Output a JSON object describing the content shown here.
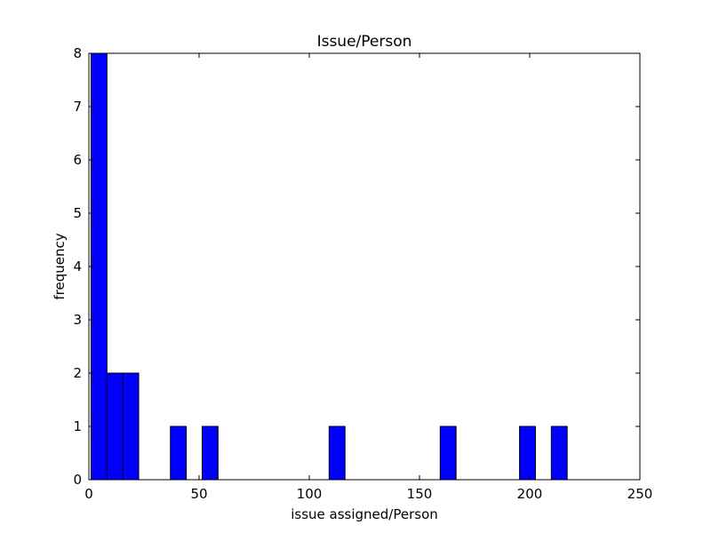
{
  "chart_data": {
    "type": "bar",
    "title": "Issue/Person",
    "xlabel": "issue assigned/Person",
    "ylabel": "frequency",
    "xlim": [
      0,
      250
    ],
    "ylim": [
      0,
      8
    ],
    "xticks": [
      "0",
      "50",
      "100",
      "150",
      "200",
      "250"
    ],
    "yticks": [
      "0",
      "1",
      "2",
      "3",
      "4",
      "5",
      "6",
      "7",
      "8"
    ],
    "bin_width": 7.2,
    "bins": [
      {
        "start": 1,
        "count": 8
      },
      {
        "start": 8.2,
        "count": 2
      },
      {
        "start": 15.4,
        "count": 2
      },
      {
        "start": 37,
        "count": 1
      },
      {
        "start": 51.4,
        "count": 1
      },
      {
        "start": 109,
        "count": 1
      },
      {
        "start": 159.4,
        "count": 1
      },
      {
        "start": 195.4,
        "count": 1
      },
      {
        "start": 209.8,
        "count": 1
      }
    ],
    "grid": false,
    "bar_color": "#0000ff",
    "edge_color": "#000000"
  }
}
